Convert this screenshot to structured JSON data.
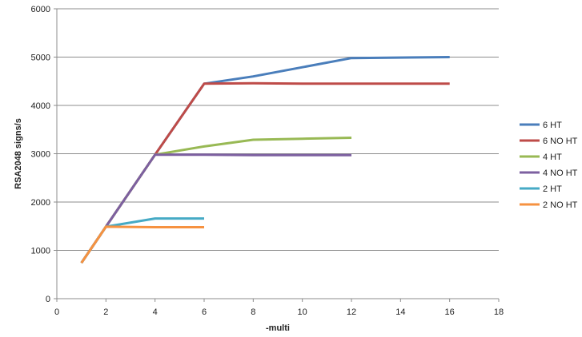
{
  "chart_data": {
    "type": "line",
    "title": "",
    "xlabel": "-multi",
    "ylabel": "RSA2048 signs/s",
    "xlim": [
      0,
      18
    ],
    "ylim": [
      0,
      6000
    ],
    "xticks": [
      0,
      2,
      4,
      6,
      8,
      10,
      12,
      14,
      16,
      18
    ],
    "yticks": [
      0,
      1000,
      2000,
      3000,
      4000,
      5000,
      6000
    ],
    "grid": "horizontal",
    "legend": "right",
    "series": [
      {
        "name": "6 HT",
        "color": "#4a7ebb",
        "x": [
          1,
          2,
          4,
          6,
          8,
          10,
          12,
          16
        ],
        "y": [
          740,
          1490,
          2980,
          4450,
          4600,
          4790,
          4980,
          5000
        ]
      },
      {
        "name": "6 NO HT",
        "color": "#be4b48",
        "x": [
          1,
          2,
          4,
          6,
          8,
          10,
          12,
          16
        ],
        "y": [
          740,
          1490,
          2980,
          4450,
          4460,
          4450,
          4450,
          4450
        ]
      },
      {
        "name": "4 HT",
        "color": "#98b954",
        "x": [
          1,
          2,
          4,
          6,
          8,
          10,
          12
        ],
        "y": [
          740,
          1490,
          2980,
          3150,
          3290,
          3310,
          3330
        ]
      },
      {
        "name": "4 NO HT",
        "color": "#7d60a0",
        "x": [
          1,
          2,
          4,
          6,
          8,
          10,
          12
        ],
        "y": [
          740,
          1490,
          2980,
          2980,
          2970,
          2970,
          2970
        ]
      },
      {
        "name": "2 HT",
        "color": "#46aac5",
        "x": [
          1,
          2,
          4,
          6
        ],
        "y": [
          740,
          1490,
          1660,
          1660
        ]
      },
      {
        "name": "2 NO HT",
        "color": "#f69240",
        "x": [
          1,
          2,
          4,
          6
        ],
        "y": [
          740,
          1490,
          1480,
          1480
        ]
      }
    ]
  }
}
